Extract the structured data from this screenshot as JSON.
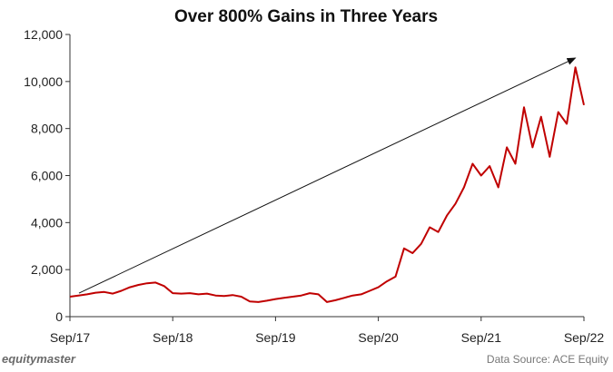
{
  "chart_data": {
    "type": "line",
    "title": "Over 800% Gains in Three Years",
    "xlabel": "",
    "ylabel": "",
    "ylim": [
      0,
      12000
    ],
    "y_ticks": [
      "0",
      "2,000",
      "4,000",
      "6,000",
      "8,000",
      "10,000",
      "12,000"
    ],
    "x_ticks": [
      "Sep/17",
      "Sep/18",
      "Sep/19",
      "Sep/20",
      "Sep/21",
      "Sep/22"
    ],
    "grid": false,
    "legend": "none",
    "line_color": "#c00000",
    "series": [
      {
        "x": [
          "Sep/17",
          "Oct/17",
          "Nov/17",
          "Dec/17",
          "Jan/18",
          "Feb/18",
          "Mar/18",
          "Apr/18",
          "May/18",
          "Jun/18",
          "Jul/18",
          "Aug/18",
          "Sep/18",
          "Oct/18",
          "Nov/18",
          "Dec/18",
          "Jan/19",
          "Feb/19",
          "Mar/19",
          "Apr/19",
          "May/19",
          "Jun/19",
          "Jul/19",
          "Aug/19",
          "Sep/19",
          "Oct/19",
          "Nov/19",
          "Dec/19",
          "Jan/20",
          "Feb/20",
          "Mar/20",
          "Apr/20",
          "May/20",
          "Jun/20",
          "Jul/20",
          "Aug/20",
          "Sep/20",
          "Oct/20",
          "Nov/20",
          "Dec/20",
          "Jan/21",
          "Feb/21",
          "Mar/21",
          "Apr/21",
          "May/21",
          "Jun/21",
          "Jul/21",
          "Aug/21",
          "Sep/21",
          "Oct/21",
          "Nov/21",
          "Dec/21",
          "Jan/22",
          "Feb/22",
          "Mar/22",
          "Apr/22",
          "May/22",
          "Jun/22",
          "Jul/22",
          "Aug/22",
          "Sep/22"
        ],
        "values": [
          850,
          900,
          950,
          1020,
          1050,
          980,
          1100,
          1250,
          1350,
          1420,
          1450,
          1300,
          1000,
          980,
          1000,
          950,
          980,
          900,
          880,
          920,
          850,
          650,
          620,
          680,
          750,
          800,
          850,
          900,
          1000,
          950,
          620,
          700,
          800,
          900,
          950,
          1100,
          1250,
          1500,
          1700,
          2900,
          2700,
          3100,
          3800,
          3600,
          4300,
          4800,
          5500,
          6500,
          6000,
          6400,
          5500,
          7200,
          6500,
          8900,
          7200,
          8500,
          6800,
          8700,
          8200,
          10600,
          9000
        ]
      }
    ],
    "annotations": [
      {
        "type": "arrow",
        "from": {
          "x": "Sep/17",
          "y": 1000
        },
        "to": {
          "x": "Aug/22",
          "y": 11000
        }
      }
    ]
  },
  "footer": {
    "brand": "equitymaster",
    "source": "Data Source: ACE Equity"
  }
}
